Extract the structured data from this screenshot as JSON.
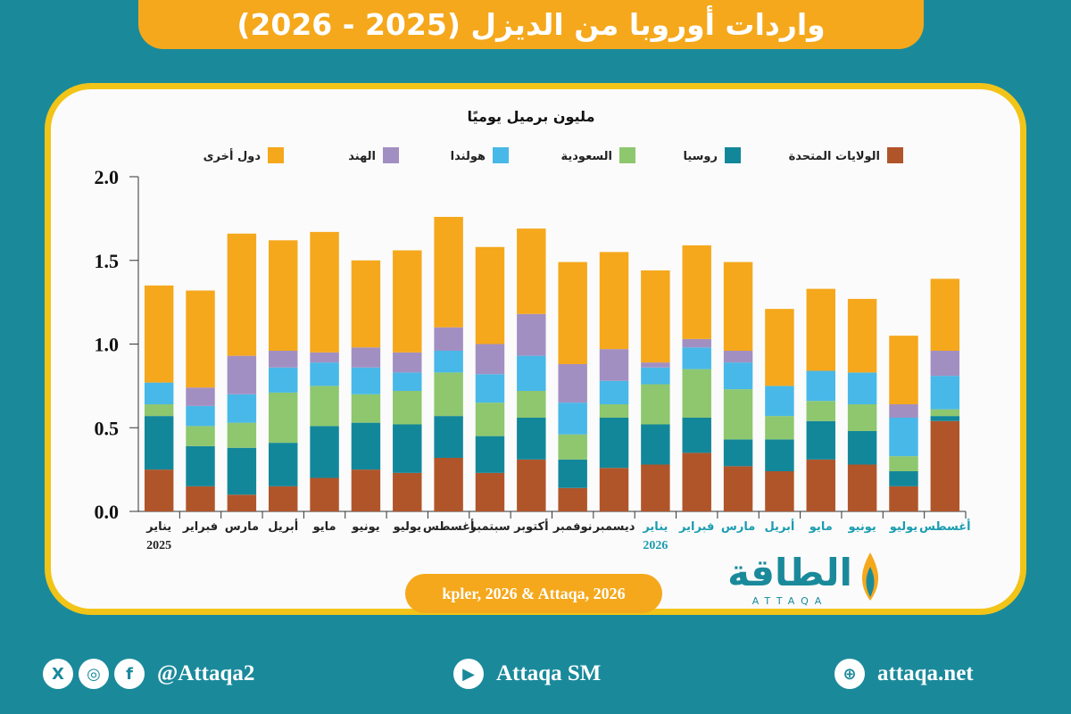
{
  "title": "واردات أوروبا من الديزل (2025 - 2026)",
  "source": "kpler, 2026 & Attaqa, 2026",
  "brand": {
    "name": "الطاقة",
    "sub": "ATTAQA"
  },
  "footer": {
    "social_handle": "@Attaqa2",
    "youtube": "Attaqa SM",
    "website": "attaqa.net",
    "icons": [
      "x-icon",
      "instagram-icon",
      "facebook-icon",
      "youtube-icon",
      "globe-icon"
    ]
  },
  "colors": {
    "us": "#b0552a",
    "russia": "#13879a",
    "saudi": "#8ec76e",
    "netherlands": "#48b8e8",
    "india": "#a28fc2",
    "others": "#f5a81c",
    "accent_yellow": "#f2c418",
    "teal": "#1a8a9b",
    "highlight_label": "#1a9db0"
  },
  "chart_data": {
    "type": "bar",
    "stacked": true,
    "unit_label": "مليون برميل يوميًا",
    "ylim": [
      0,
      2
    ],
    "yticks": [
      "0.0",
      "0.5",
      "1.0",
      "1.5",
      "2.0"
    ],
    "categories": [
      "يناير",
      "فبراير",
      "مارس",
      "أبريل",
      "مايو",
      "يونيو",
      "يوليو",
      "أغسطس",
      "سبتمبر",
      "أكتوبر",
      "نوفمبر",
      "ديسمبر",
      "يناير",
      "فبراير",
      "مارس",
      "أبريل",
      "مايو",
      "يونيو",
      "يوليو",
      "أغسطس"
    ],
    "year_labels": [
      {
        "index": 0,
        "text": "2025"
      },
      {
        "index": 12,
        "text": "2026"
      }
    ],
    "highlight_from_index": 12,
    "series": [
      {
        "name": "الولايات المتحدة",
        "key": "us",
        "values": [
          0.25,
          0.15,
          0.1,
          0.15,
          0.2,
          0.25,
          0.23,
          0.32,
          0.23,
          0.31,
          0.14,
          0.26,
          0.28,
          0.35,
          0.27,
          0.24,
          0.31,
          0.28,
          0.15,
          0.54
        ]
      },
      {
        "name": "روسيا",
        "key": "russia",
        "values": [
          0.32,
          0.24,
          0.28,
          0.26,
          0.31,
          0.28,
          0.29,
          0.25,
          0.22,
          0.25,
          0.17,
          0.3,
          0.24,
          0.21,
          0.16,
          0.19,
          0.23,
          0.2,
          0.09,
          0.03
        ]
      },
      {
        "name": "السعودية",
        "key": "saudi",
        "values": [
          0.07,
          0.12,
          0.15,
          0.3,
          0.24,
          0.17,
          0.2,
          0.26,
          0.2,
          0.16,
          0.15,
          0.08,
          0.24,
          0.29,
          0.3,
          0.14,
          0.12,
          0.16,
          0.09,
          0.04
        ]
      },
      {
        "name": "هولندا",
        "key": "netherlands",
        "values": [
          0.13,
          0.12,
          0.17,
          0.15,
          0.14,
          0.16,
          0.11,
          0.13,
          0.17,
          0.21,
          0.19,
          0.14,
          0.1,
          0.13,
          0.16,
          0.18,
          0.18,
          0.19,
          0.23,
          0.2
        ]
      },
      {
        "name": "الهند",
        "key": "india",
        "values": [
          0.0,
          0.11,
          0.23,
          0.1,
          0.06,
          0.12,
          0.12,
          0.14,
          0.18,
          0.25,
          0.23,
          0.19,
          0.03,
          0.05,
          0.07,
          0.0,
          0.0,
          0.0,
          0.08,
          0.15
        ]
      },
      {
        "name": "دول أخرى",
        "key": "others",
        "values": [
          0.58,
          0.58,
          0.73,
          0.66,
          0.72,
          0.52,
          0.61,
          0.66,
          0.58,
          0.51,
          0.61,
          0.58,
          0.55,
          0.56,
          0.53,
          0.46,
          0.49,
          0.44,
          0.41,
          0.43
        ]
      }
    ]
  }
}
